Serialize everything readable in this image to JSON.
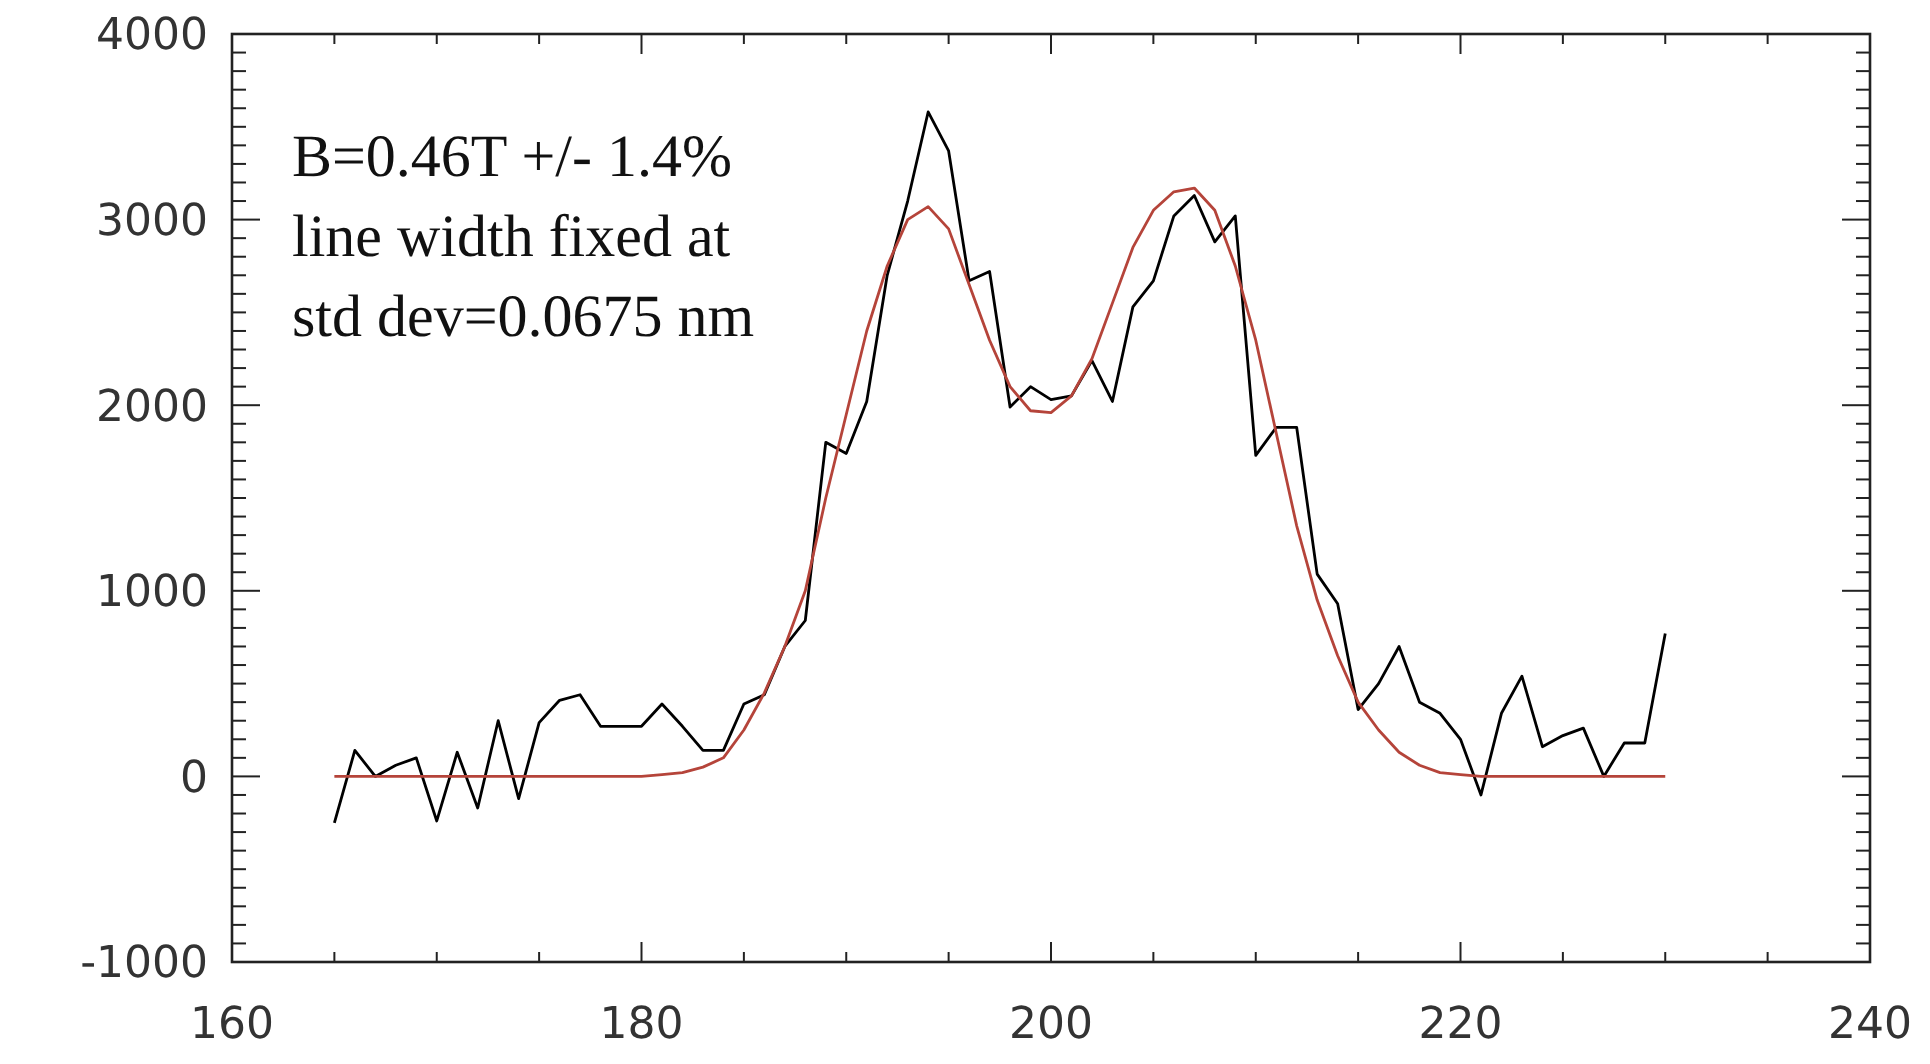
{
  "chart_data": {
    "type": "line",
    "annotations": [
      "B=0.46T +/- 1.4%",
      "line width fixed at",
      "std dev=0.0675 nm"
    ],
    "xlim": [
      160,
      240
    ],
    "ylim": [
      -1000,
      4000
    ],
    "xticks": [
      160,
      {
        "value": 165,
        "label": null
      },
      {
        "value": 170,
        "label": null
      },
      {
        "value": 175,
        "label": null
      },
      180,
      {
        "value": 185,
        "label": null
      },
      {
        "value": 190,
        "label": null
      },
      {
        "value": 195,
        "label": null
      },
      200,
      {
        "value": 205,
        "label": null
      },
      {
        "value": 210,
        "label": null
      },
      {
        "value": 215,
        "label": null
      },
      220,
      {
        "value": 225,
        "label": null
      },
      {
        "value": 230,
        "label": null
      },
      {
        "value": 235,
        "label": null
      },
      240
    ],
    "yticks": [
      -1000,
      {
        "value": -900,
        "label": null
      },
      {
        "value": -800,
        "label": null
      },
      {
        "value": -700,
        "label": null
      },
      {
        "value": -600,
        "label": null
      },
      {
        "value": -500,
        "label": null
      },
      {
        "value": -400,
        "label": null
      },
      {
        "value": -300,
        "label": null
      },
      {
        "value": -200,
        "label": null
      },
      {
        "value": -100,
        "label": null
      },
      0,
      {
        "value": 100,
        "label": null
      },
      {
        "value": 200,
        "label": null
      },
      {
        "value": 300,
        "label": null
      },
      {
        "value": 400,
        "label": null
      },
      {
        "value": 500,
        "label": null
      },
      {
        "value": 600,
        "label": null
      },
      {
        "value": 700,
        "label": null
      },
      {
        "value": 800,
        "label": null
      },
      {
        "value": 900,
        "label": null
      },
      1000,
      {
        "value": 1100,
        "label": null
      },
      {
        "value": 1200,
        "label": null
      },
      {
        "value": 1300,
        "label": null
      },
      {
        "value": 1400,
        "label": null
      },
      {
        "value": 1500,
        "label": null
      },
      {
        "value": 1600,
        "label": null
      },
      {
        "value": 1700,
        "label": null
      },
      {
        "value": 1800,
        "label": null
      },
      {
        "value": 1900,
        "label": null
      },
      2000,
      {
        "value": 2100,
        "label": null
      },
      {
        "value": 2200,
        "label": null
      },
      {
        "value": 2300,
        "label": null
      },
      {
        "value": 2400,
        "label": null
      },
      {
        "value": 2500,
        "label": null
      },
      {
        "value": 2600,
        "label": null
      },
      {
        "value": 2700,
        "label": null
      },
      {
        "value": 2800,
        "label": null
      },
      {
        "value": 2900,
        "label": null
      },
      3000,
      {
        "value": 3100,
        "label": null
      },
      {
        "value": 3200,
        "label": null
      },
      {
        "value": 3300,
        "label": null
      },
      {
        "value": 3400,
        "label": null
      },
      {
        "value": 3500,
        "label": null
      },
      {
        "value": 3600,
        "label": null
      },
      {
        "value": 3700,
        "label": null
      },
      {
        "value": 3800,
        "label": null
      },
      {
        "value": 3900,
        "label": null
      },
      4000
    ],
    "grid": false,
    "marker": "none",
    "line_style": "solid",
    "series": [
      {
        "color": "#000000",
        "x": [
          165,
          166,
          167,
          168,
          169,
          170,
          171,
          172,
          173,
          174,
          175,
          176,
          177,
          178,
          179,
          180,
          181,
          182,
          183,
          184,
          185,
          186,
          187,
          188,
          189,
          190,
          191,
          192,
          193,
          194,
          195,
          196,
          197,
          198,
          199,
          200,
          201,
          202,
          203,
          204,
          205,
          206,
          207,
          208,
          209,
          210,
          211,
          212,
          213,
          214,
          215,
          216,
          217,
          218,
          219,
          220,
          221,
          222,
          223,
          224,
          225,
          226,
          227,
          228,
          229,
          230
        ],
        "values": [
          -250,
          140,
          0,
          60,
          100,
          -240,
          130,
          -170,
          300,
          -120,
          290,
          410,
          440,
          270,
          270,
          270,
          390,
          270,
          140,
          140,
          390,
          440,
          700,
          840,
          1800,
          1740,
          2020,
          2700,
          3100,
          3580,
          3370,
          2670,
          2720,
          1990,
          2100,
          2030,
          2050,
          2240,
          2020,
          2530,
          2670,
          3020,
          3130,
          2880,
          3020,
          1730,
          1880,
          1880,
          1090,
          930,
          360,
          500,
          700,
          400,
          340,
          200,
          -100,
          340,
          540,
          160,
          220,
          260,
          0,
          180,
          180,
          770
        ]
      },
      {
        "color": "#b5443a",
        "x": [
          165,
          166,
          167,
          168,
          169,
          170,
          171,
          172,
          173,
          174,
          175,
          176,
          177,
          178,
          179,
          180,
          181,
          182,
          183,
          184,
          185,
          186,
          187,
          188,
          189,
          190,
          191,
          192,
          193,
          194,
          195,
          196,
          197,
          198,
          199,
          200,
          201,
          202,
          203,
          204,
          205,
          206,
          207,
          208,
          209,
          210,
          211,
          212,
          213,
          214,
          215,
          216,
          217,
          218,
          219,
          220,
          221,
          222,
          223,
          224,
          225,
          226,
          227,
          228,
          229,
          230
        ],
        "values": [
          0,
          0,
          0,
          0,
          0,
          0,
          0,
          0,
          0,
          0,
          0,
          0,
          0,
          0,
          0,
          0,
          10,
          20,
          50,
          100,
          250,
          450,
          700,
          1000,
          1500,
          1950,
          2400,
          2750,
          3000,
          3070,
          2950,
          2650,
          2350,
          2100,
          1970,
          1960,
          2050,
          2250,
          2550,
          2850,
          3050,
          3150,
          3170,
          3050,
          2750,
          2350,
          1850,
          1350,
          950,
          650,
          400,
          250,
          130,
          60,
          20,
          10,
          0,
          0,
          0,
          0,
          0,
          0,
          0,
          0,
          0,
          0
        ]
      }
    ]
  }
}
